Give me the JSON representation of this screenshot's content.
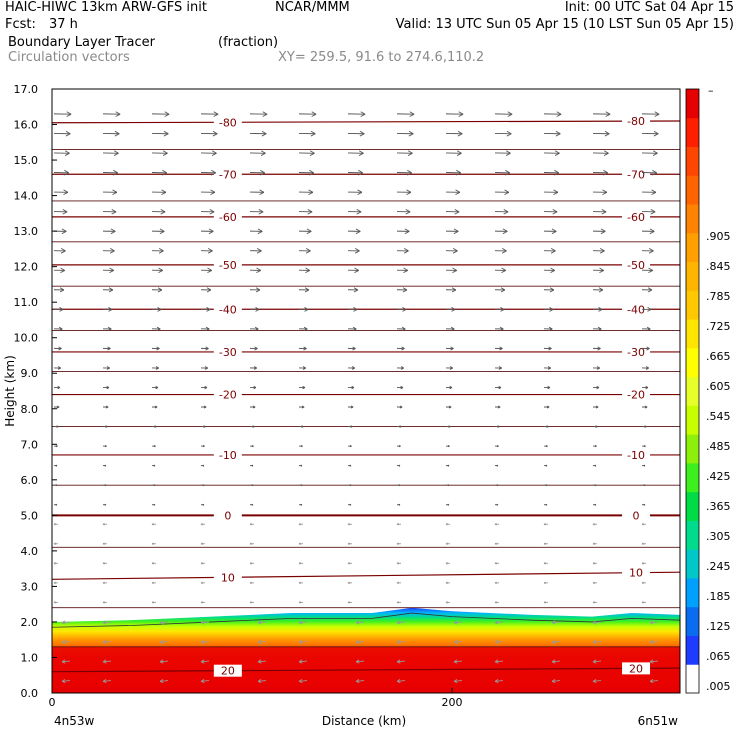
{
  "header": {
    "model": "HAIC-HIWC 13km ARW-GFS init",
    "org": "NCAR/MMM",
    "init": "Init: 00 UTC Sat 04 Apr 15",
    "fcst_label": "Fcst:",
    "fcst_value": "37 h",
    "valid": "Valid: 13 UTC Sun 05 Apr 15 (10 LST Sun 05 Apr 15)",
    "field1": "Boundary Layer Tracer",
    "field1_units": "(fraction)",
    "field2": "Circulation vectors",
    "xy": "XY= 259.5, 91.6 to 274.6,110.2"
  },
  "chart_data": {
    "type": "heatmap",
    "title": "Boundary Layer Tracer (fraction)",
    "xlabel": "Distance (km)",
    "ylabel": "Height (km)",
    "xlim": [
      0,
      314
    ],
    "ylim": [
      0,
      17
    ],
    "x_ticks": [
      0,
      200
    ],
    "y_ticks": [
      "0.0",
      "1.0",
      "2.0",
      "3.0",
      "4.0",
      "5.0",
      "6.0",
      "7.0",
      "8.0",
      "9.0",
      "10.0",
      "11.0",
      "12.0",
      "13.0",
      "14.0",
      "15.0",
      "16.0",
      "17.0"
    ],
    "x_endpoints": {
      "left": "4n53w",
      "right": "6n51w"
    },
    "colorbar": {
      "colors": [
        "#ffffff",
        "#1e3cff",
        "#0a6cf0",
        "#00a0ff",
        "#00c8c8",
        "#00dc8c",
        "#00dc46",
        "#3cf01e",
        "#8cf00a",
        "#c8ff00",
        "#e6ff28",
        "#ffff00",
        "#ffe600",
        "#ffc800",
        "#ffb400",
        "#ffa000",
        "#ff8200",
        "#ff6400",
        "#ff4600",
        "#ff1e00",
        "#e60000"
      ],
      "labels": [
        ".005",
        ".065",
        ".125",
        ".185",
        ".245",
        ".305",
        ".365",
        ".425",
        ".485",
        ".545",
        ".605",
        ".665",
        ".725",
        ".785",
        ".845",
        ".905"
      ],
      "top_label": "–"
    },
    "contours": {
      "name": "temperature",
      "color": "#7a0000",
      "lines": [
        {
          "value": 20,
          "label": "20",
          "y_left": 0.6,
          "y_right": 0.7
        },
        {
          "value": 10,
          "label": "10",
          "y_left": 3.2,
          "y_right": 3.4
        },
        {
          "value": 0,
          "label": "0",
          "y_left": 5.0,
          "y_right": 5.0
        },
        {
          "value": -10,
          "label": "-10",
          "y_left": 6.7,
          "y_right": 6.7
        },
        {
          "value": -20,
          "label": "-20",
          "y_left": 8.4,
          "y_right": 8.4
        },
        {
          "value": -30,
          "label": "-30",
          "y_left": 9.6,
          "y_right": 9.6
        },
        {
          "value": -40,
          "label": "-40",
          "y_left": 10.8,
          "y_right": 10.8
        },
        {
          "value": -50,
          "label": "-50",
          "y_left": 12.05,
          "y_right": 12.05
        },
        {
          "value": -60,
          "label": "-60",
          "y_left": 13.4,
          "y_right": 13.4
        },
        {
          "value": -70,
          "label": "-70",
          "y_left": 14.6,
          "y_right": 14.6
        },
        {
          "value": -80,
          "label": "-80",
          "y_left": 16.05,
          "y_right": 16.1
        }
      ],
      "unlabeled_levels": [
        1.3,
        2.4,
        4.1,
        5.85,
        7.5,
        9.05,
        10.2,
        11.45,
        12.7,
        13.85,
        15.3
      ]
    },
    "bl_top_km": [
      [
        0,
        2.0
      ],
      [
        40,
        2.05
      ],
      [
        80,
        2.15
      ],
      [
        120,
        2.25
      ],
      [
        160,
        2.25
      ],
      [
        180,
        2.4
      ],
      [
        200,
        2.3
      ],
      [
        240,
        2.2
      ],
      [
        270,
        2.15
      ],
      [
        290,
        2.25
      ],
      [
        314,
        2.2
      ]
    ],
    "vectors": {
      "upper_color": "#555555",
      "lower_color": "#999999",
      "pattern": "westerly above 5 km, weak easterly below 5 km"
    }
  }
}
